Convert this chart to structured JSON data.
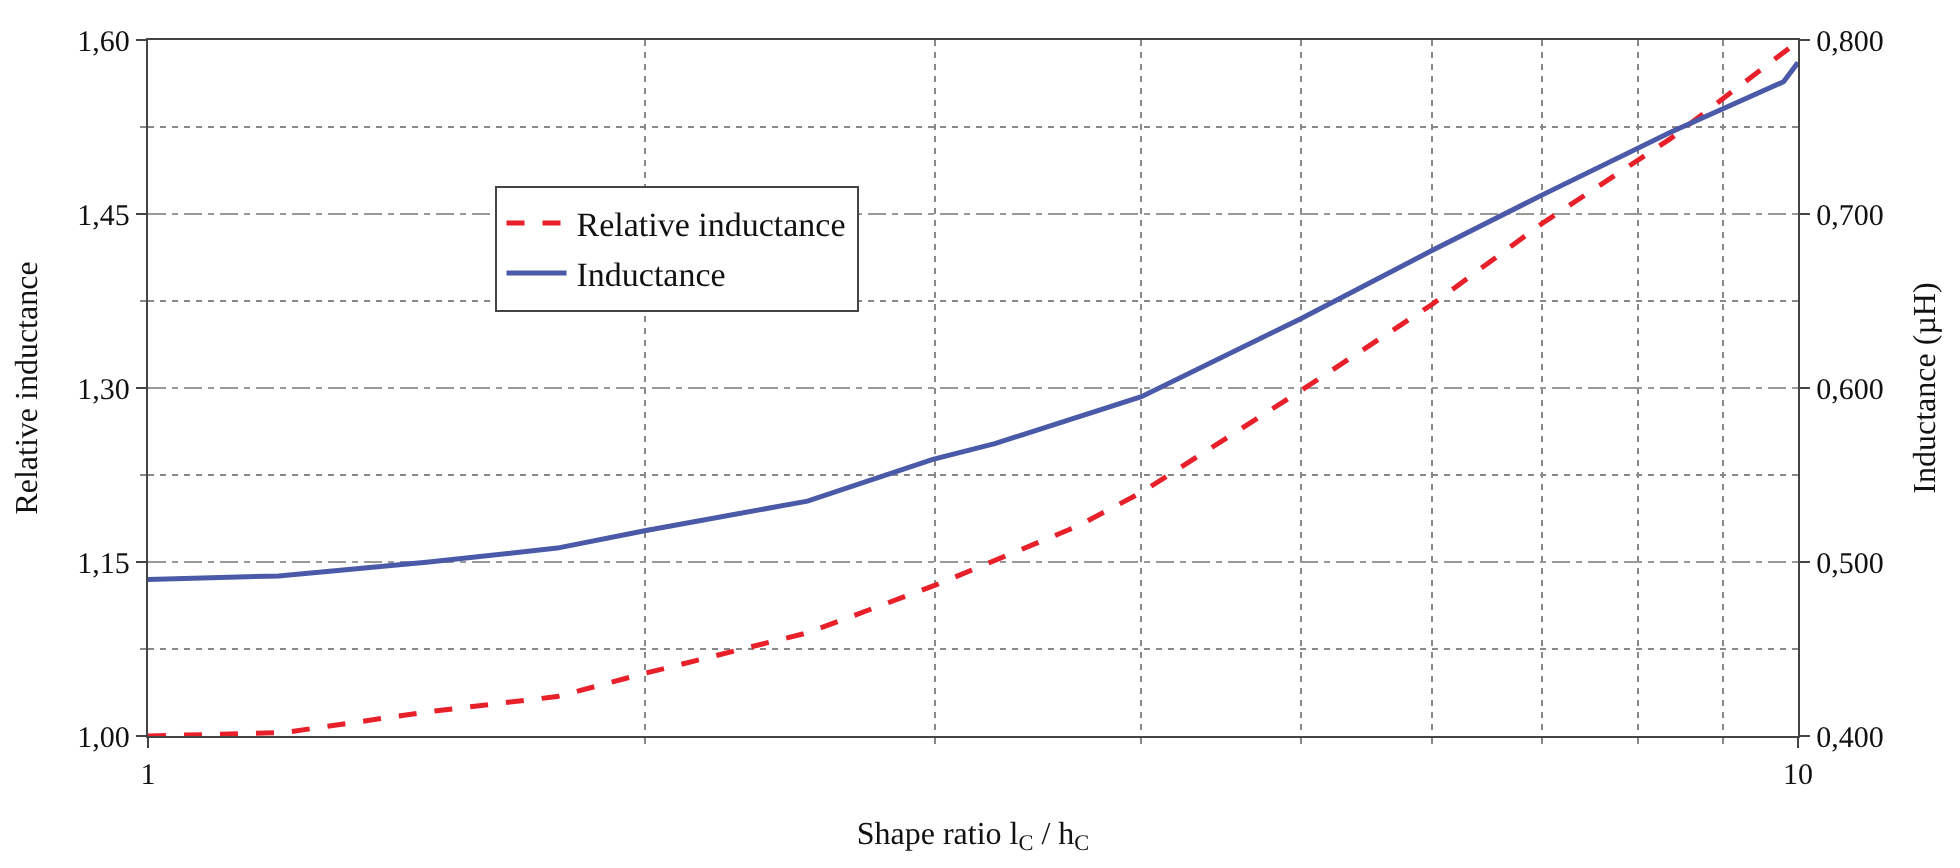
{
  "chart_data": {
    "type": "line",
    "xlabel": "Shape ratio l$_{C}$ / h$_{C}$",
    "ylabel": "Relative inductance",
    "y2label": "Inductance (µH)",
    "log": "x",
    "xlim": [
      1,
      10
    ],
    "xticks": [
      1,
      {
        "value": 2,
        "label": null
      },
      {
        "value": 3,
        "label": null
      },
      {
        "value": 4,
        "label": null
      },
      {
        "value": 5,
        "label": null
      },
      {
        "value": 6,
        "label": null
      },
      {
        "value": 7,
        "label": null
      },
      {
        "value": 8,
        "label": null
      },
      {
        "value": 9,
        "label": null
      },
      10
    ],
    "ylim": [
      1.0,
      1.6
    ],
    "yticks": [
      {
        "value": 1.0,
        "label": "1,00"
      },
      {
        "value": 1.075,
        "label": null
      },
      {
        "value": 1.15,
        "label": "1,15"
      },
      {
        "value": 1.225,
        "label": null
      },
      {
        "value": 1.3,
        "label": "1,30"
      },
      {
        "value": 1.375,
        "label": null
      },
      {
        "value": 1.45,
        "label": "1,45"
      },
      {
        "value": 1.525,
        "label": null
      },
      {
        "value": 1.6,
        "label": "1,60"
      }
    ],
    "y2lim": [
      0.4,
      0.8
    ],
    "y2ticks": [
      {
        "value": 0.4,
        "label": "0,400"
      },
      {
        "value": 0.5,
        "label": "0,500"
      },
      {
        "value": 0.6,
        "label": "0,600"
      },
      {
        "value": 0.7,
        "label": "0,700"
      },
      {
        "value": 0.8,
        "label": "0,800"
      }
    ],
    "grid": true,
    "legend": "left",
    "marker": "none",
    "series": [
      {
        "name": "Relative inductance",
        "color": "#e8202a",
        "line_style": "dashed",
        "x": [
          1,
          1.21,
          1.48,
          1.77,
          2,
          2.51,
          3,
          3.66,
          4,
          5,
          6,
          7,
          8.37,
          9.9,
          10
        ],
        "values": [
          1.0,
          1.003,
          1.021,
          1.034,
          1.054,
          1.089,
          1.13,
          1.181,
          1.21,
          1.298,
          1.372,
          1.442,
          1.515,
          1.594,
          1.6
        ]
      },
      {
        "name": "Inductance",
        "color": "#4a5aa8",
        "line_style": "solid",
        "axis": "y2",
        "x": [
          1,
          1.2,
          1.48,
          1.77,
          2,
          2.51,
          2.99,
          3.26,
          4,
          5,
          6,
          7,
          8.37,
          9.8,
          10
        ],
        "values": [
          0.49,
          0.492,
          0.5,
          0.508,
          0.518,
          0.535,
          0.559,
          0.568,
          0.595,
          0.64,
          0.679,
          0.711,
          0.747,
          0.776,
          0.787
        ]
      }
    ]
  }
}
